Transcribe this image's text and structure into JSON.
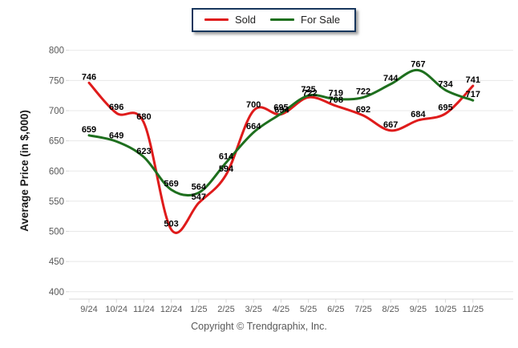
{
  "legend": {
    "items": [
      {
        "label": "Sold",
        "color": "#df1b1b"
      },
      {
        "label": "For Sale",
        "color": "#1e6f1e"
      }
    ]
  },
  "footer": {
    "copyright": "Copyright © Trendgraphix, Inc."
  },
  "colors": {
    "sold": "#df1b1b",
    "for_sale": "#1e6f1e",
    "legend_border": "#17365d",
    "gridline": "#e8e8e8",
    "axis_line": "#d9d9d9",
    "tick_text": "#595959",
    "data_label": "#000000",
    "axis_title": "#1a1a1a"
  },
  "chart_data": {
    "type": "line",
    "title": "",
    "xlabel": "",
    "ylabel": "Average Price (in $,000)",
    "ylim": [
      400,
      800
    ],
    "yticks": [
      800,
      750,
      700,
      650,
      600,
      550,
      500,
      450,
      400
    ],
    "grid": "horizontal",
    "legend_position": "top-center",
    "line_style": "smooth",
    "categories": [
      "9/24",
      "10/24",
      "11/24",
      "12/24",
      "1/25",
      "2/25",
      "3/25",
      "4/25",
      "5/25",
      "6/25",
      "7/25",
      "8/25",
      "9/25",
      "10/25",
      "11/25"
    ],
    "series": [
      {
        "name": "Sold",
        "color": "#df1b1b",
        "values": [
          746,
          696,
          680,
          503,
          547,
          594,
          700,
          694,
          722,
          708,
          692,
          667,
          684,
          695,
          741
        ]
      },
      {
        "name": "For Sale",
        "color": "#1e6f1e",
        "values": [
          659,
          649,
          623,
          569,
          564,
          614,
          664,
          695,
          725,
          719,
          722,
          744,
          767,
          734,
          717
        ]
      }
    ]
  }
}
